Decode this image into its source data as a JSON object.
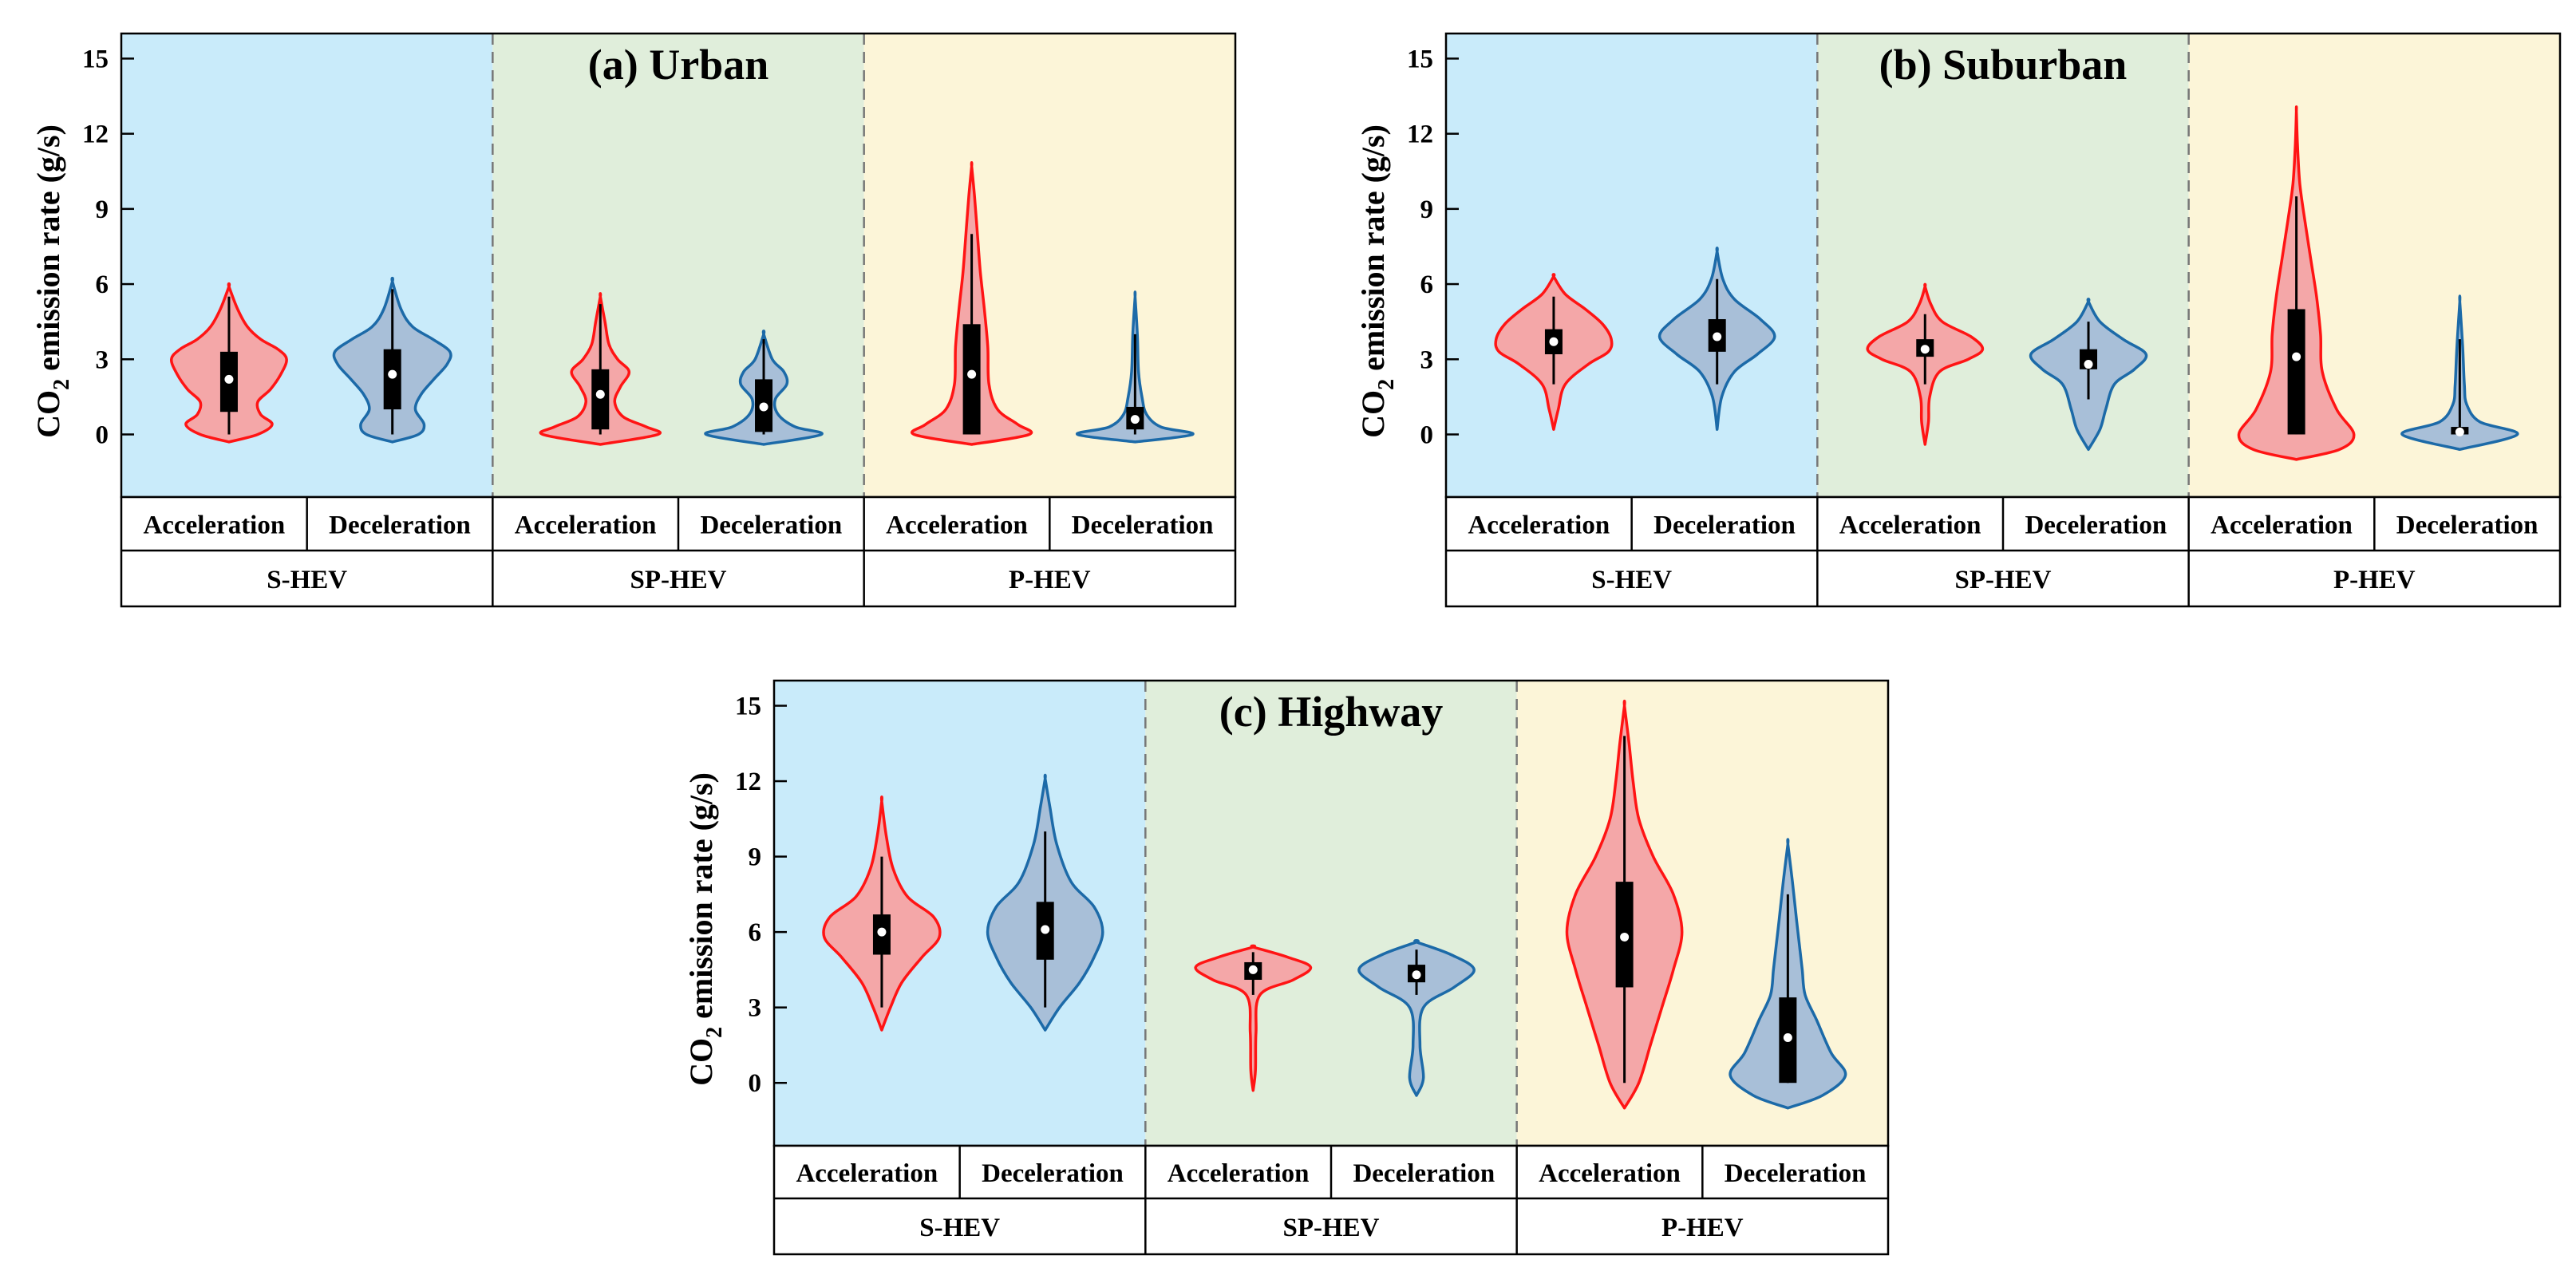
{
  "chart_data": [
    {
      "type": "violin",
      "title": "(a) Urban",
      "ylabel": "CO2 emission rate (g/s)",
      "ylim": [
        -2.5,
        16
      ],
      "yticks": [
        0,
        3,
        6,
        9,
        12,
        15
      ],
      "vehicle_groups": [
        "S-HEV",
        "SP-HEV",
        "P-HEV"
      ],
      "conditions": [
        "Acceleration",
        "Deceleration"
      ],
      "series": [
        {
          "group": "S-HEV",
          "condition": "Acceleration",
          "min": -0.3,
          "max": 5.9,
          "q1": 0.9,
          "median": 2.2,
          "q3": 3.3,
          "whisker_low": 0.0,
          "whisker_high": 5.5,
          "profile": [
            [
              -0.3,
              0.0
            ],
            [
              0.0,
              0.5
            ],
            [
              0.4,
              0.75
            ],
            [
              0.8,
              0.55
            ],
            [
              1.3,
              0.5
            ],
            [
              1.8,
              0.72
            ],
            [
              2.4,
              0.9
            ],
            [
              3.0,
              1.0
            ],
            [
              3.4,
              0.85
            ],
            [
              3.8,
              0.55
            ],
            [
              4.3,
              0.32
            ],
            [
              5.0,
              0.15
            ],
            [
              5.9,
              0.0
            ]
          ]
        },
        {
          "group": "S-HEV",
          "condition": "Deceleration",
          "min": -0.3,
          "max": 6.1,
          "q1": 1.0,
          "median": 2.4,
          "q3": 3.4,
          "whisker_low": 0.0,
          "whisker_high": 5.8,
          "profile": [
            [
              -0.3,
              0.0
            ],
            [
              0.0,
              0.45
            ],
            [
              0.4,
              0.55
            ],
            [
              1.0,
              0.4
            ],
            [
              1.6,
              0.5
            ],
            [
              2.2,
              0.72
            ],
            [
              2.8,
              0.95
            ],
            [
              3.3,
              1.0
            ],
            [
              3.8,
              0.7
            ],
            [
              4.3,
              0.35
            ],
            [
              5.0,
              0.15
            ],
            [
              6.1,
              0.0
            ]
          ]
        }
      ]
    },
    {
      "type": "violin",
      "title": "(a) Urban",
      "group": "SP-HEV",
      "series": [
        {
          "group": "SP-HEV",
          "condition": "Acceleration",
          "min": -0.4,
          "max": 5.5,
          "q1": 0.2,
          "median": 1.6,
          "q3": 2.6,
          "whisker_low": 0.0,
          "whisker_high": 5.2,
          "profile": [
            [
              -0.4,
              0.0
            ],
            [
              0.0,
              1.0
            ],
            [
              0.3,
              0.8
            ],
            [
              0.7,
              0.4
            ],
            [
              1.3,
              0.25
            ],
            [
              1.9,
              0.35
            ],
            [
              2.5,
              0.5
            ],
            [
              3.0,
              0.3
            ],
            [
              3.6,
              0.15
            ],
            [
              4.5,
              0.08
            ],
            [
              5.5,
              0.0
            ]
          ]
        },
        {
          "group": "SP-HEV",
          "condition": "Deceleration",
          "min": -0.4,
          "max": 4.0,
          "q1": 0.1,
          "median": 1.1,
          "q3": 2.2,
          "whisker_low": 0.0,
          "whisker_high": 3.8,
          "profile": [
            [
              -0.4,
              0.0
            ],
            [
              0.0,
              1.0
            ],
            [
              0.3,
              0.55
            ],
            [
              0.8,
              0.25
            ],
            [
              1.4,
              0.2
            ],
            [
              2.0,
              0.4
            ],
            [
              2.5,
              0.35
            ],
            [
              3.0,
              0.15
            ],
            [
              4.0,
              0.0
            ]
          ]
        }
      ]
    },
    {
      "type": "violin",
      "title": "(a) Urban",
      "group": "P-HEV",
      "series": [
        {
          "group": "P-HEV",
          "condition": "Acceleration",
          "min": -0.4,
          "max": 10.7,
          "q1": 0.0,
          "median": 2.4,
          "q3": 4.4,
          "whisker_low": 0.0,
          "whisker_high": 8.0,
          "profile": [
            [
              -0.4,
              0.0
            ],
            [
              0.0,
              1.0
            ],
            [
              0.4,
              0.8
            ],
            [
              1.0,
              0.45
            ],
            [
              2.0,
              0.3
            ],
            [
              3.5,
              0.28
            ],
            [
              5.0,
              0.22
            ],
            [
              6.5,
              0.15
            ],
            [
              8.0,
              0.1
            ],
            [
              9.5,
              0.05
            ],
            [
              10.7,
              0.0
            ]
          ]
        },
        {
          "group": "P-HEV",
          "condition": "Deceleration",
          "min": -0.3,
          "max": 5.5,
          "q1": 0.2,
          "median": 0.6,
          "q3": 1.1,
          "whisker_low": 0.0,
          "whisker_high": 4.0,
          "profile": [
            [
              -0.3,
              0.0
            ],
            [
              0.0,
              1.0
            ],
            [
              0.3,
              0.45
            ],
            [
              0.8,
              0.2
            ],
            [
              1.5,
              0.12
            ],
            [
              2.5,
              0.06
            ],
            [
              4.0,
              0.04
            ],
            [
              5.5,
              0.0
            ]
          ]
        }
      ]
    },
    {
      "type": "violin",
      "title": "(b) Suburban",
      "ylabel": "CO2 emission rate (g/s)",
      "ylim": [
        -2.5,
        16
      ],
      "yticks": [
        0,
        3,
        6,
        9,
        12,
        15
      ],
      "series": [
        {
          "group": "S-HEV",
          "condition": "Acceleration",
          "min": 0.2,
          "max": 6.3,
          "q1": 3.2,
          "median": 3.7,
          "q3": 4.2,
          "whisker_low": 2.0,
          "whisker_high": 5.5,
          "profile": [
            [
              0.2,
              0.0
            ],
            [
              1.0,
              0.08
            ],
            [
              2.0,
              0.2
            ],
            [
              2.8,
              0.6
            ],
            [
              3.3,
              0.95
            ],
            [
              3.8,
              1.0
            ],
            [
              4.4,
              0.85
            ],
            [
              5.0,
              0.55
            ],
            [
              5.6,
              0.2
            ],
            [
              6.3,
              0.0
            ]
          ]
        },
        {
          "group": "S-HEV",
          "condition": "Deceleration",
          "min": 0.2,
          "max": 7.3,
          "q1": 3.3,
          "median": 3.9,
          "q3": 4.6,
          "whisker_low": 2.0,
          "whisker_high": 6.2,
          "profile": [
            [
              0.2,
              0.0
            ],
            [
              1.5,
              0.08
            ],
            [
              2.5,
              0.3
            ],
            [
              3.2,
              0.7
            ],
            [
              3.9,
              1.0
            ],
            [
              4.6,
              0.75
            ],
            [
              5.4,
              0.3
            ],
            [
              6.2,
              0.1
            ],
            [
              7.3,
              0.0
            ]
          ]
        },
        {
          "group": "SP-HEV",
          "condition": "Acceleration",
          "min": -0.4,
          "max": 5.9,
          "q1": 3.1,
          "median": 3.4,
          "q3": 3.8,
          "whisker_low": 2.0,
          "whisker_high": 4.8,
          "profile": [
            [
              -0.4,
              0.0
            ],
            [
              0.5,
              0.06
            ],
            [
              1.5,
              0.08
            ],
            [
              2.5,
              0.25
            ],
            [
              3.0,
              0.75
            ],
            [
              3.4,
              1.0
            ],
            [
              3.9,
              0.8
            ],
            [
              4.5,
              0.3
            ],
            [
              5.2,
              0.1
            ],
            [
              5.9,
              0.0
            ]
          ]
        },
        {
          "group": "SP-HEV",
          "condition": "Deceleration",
          "min": -0.6,
          "max": 5.3,
          "q1": 2.6,
          "median": 2.8,
          "q3": 3.4,
          "whisker_low": 1.4,
          "whisker_high": 4.5,
          "profile": [
            [
              -0.6,
              0.0
            ],
            [
              0.2,
              0.2
            ],
            [
              1.0,
              0.3
            ],
            [
              2.0,
              0.45
            ],
            [
              2.6,
              0.8
            ],
            [
              3.2,
              1.0
            ],
            [
              3.8,
              0.6
            ],
            [
              4.5,
              0.2
            ],
            [
              5.3,
              0.0
            ]
          ]
        },
        {
          "group": "P-HEV",
          "condition": "Acceleration",
          "min": -1.0,
          "max": 12.9,
          "q1": 0.0,
          "median": 3.1,
          "q3": 5.0,
          "whisker_low": 0.0,
          "whisker_high": 9.5,
          "profile": [
            [
              -1.0,
              0.0
            ],
            [
              -0.6,
              0.75
            ],
            [
              0.0,
              1.0
            ],
            [
              1.0,
              0.7
            ],
            [
              2.5,
              0.45
            ],
            [
              4.0,
              0.42
            ],
            [
              5.5,
              0.35
            ],
            [
              7.0,
              0.25
            ],
            [
              8.5,
              0.15
            ],
            [
              10.0,
              0.06
            ],
            [
              11.5,
              0.02
            ],
            [
              12.9,
              0.0
            ]
          ]
        },
        {
          "group": "P-HEV",
          "condition": "Deceleration",
          "min": -0.6,
          "max": 5.3,
          "q1": 0.0,
          "median": 0.1,
          "q3": 0.3,
          "whisker_low": 0.0,
          "whisker_high": 3.8,
          "profile": [
            [
              -0.6,
              0.0
            ],
            [
              0.0,
              1.0
            ],
            [
              0.5,
              0.35
            ],
            [
              1.2,
              0.12
            ],
            [
              2.0,
              0.08
            ],
            [
              3.5,
              0.05
            ],
            [
              5.3,
              0.0
            ]
          ]
        }
      ]
    },
    {
      "type": "violin",
      "title": "(c) Highway",
      "ylabel": "CO2 emission rate (g/s)",
      "ylim": [
        -2.5,
        16
      ],
      "yticks": [
        0,
        3,
        6,
        9,
        12,
        15
      ],
      "series": [
        {
          "group": "S-HEV",
          "condition": "Acceleration",
          "min": 2.1,
          "max": 11.2,
          "q1": 5.1,
          "median": 6.0,
          "q3": 6.7,
          "whisker_low": 3.0,
          "whisker_high": 9.0,
          "profile": [
            [
              2.1,
              0.0
            ],
            [
              3.0,
              0.15
            ],
            [
              4.0,
              0.35
            ],
            [
              5.0,
              0.7
            ],
            [
              5.8,
              1.0
            ],
            [
              6.6,
              0.9
            ],
            [
              7.4,
              0.45
            ],
            [
              8.5,
              0.2
            ],
            [
              9.8,
              0.08
            ],
            [
              11.2,
              0.0
            ]
          ]
        },
        {
          "group": "S-HEV",
          "condition": "Deceleration",
          "min": 2.1,
          "max": 12.1,
          "q1": 4.9,
          "median": 6.1,
          "q3": 7.2,
          "whisker_low": 3.0,
          "whisker_high": 10.0,
          "profile": [
            [
              2.1,
              0.0
            ],
            [
              3.0,
              0.25
            ],
            [
              4.0,
              0.6
            ],
            [
              5.0,
              0.85
            ],
            [
              6.0,
              1.0
            ],
            [
              7.0,
              0.85
            ],
            [
              8.0,
              0.45
            ],
            [
              9.5,
              0.2
            ],
            [
              11.0,
              0.08
            ],
            [
              12.1,
              0.0
            ]
          ]
        },
        {
          "group": "SP-HEV",
          "condition": "Acceleration",
          "min": -0.3,
          "max": 5.4,
          "q1": 4.1,
          "median": 4.5,
          "q3": 4.8,
          "whisker_low": 3.5,
          "whisker_high": 5.2,
          "profile": [
            [
              -0.3,
              0.0
            ],
            [
              0.5,
              0.04
            ],
            [
              2.0,
              0.05
            ],
            [
              3.5,
              0.12
            ],
            [
              4.1,
              0.7
            ],
            [
              4.6,
              1.0
            ],
            [
              5.0,
              0.6
            ],
            [
              5.4,
              0.0
            ]
          ]
        },
        {
          "group": "SP-HEV",
          "condition": "Deceleration",
          "min": -0.5,
          "max": 5.6,
          "q1": 4.0,
          "median": 4.3,
          "q3": 4.7,
          "whisker_low": 3.5,
          "whisker_high": 5.3,
          "profile": [
            [
              -0.5,
              0.0
            ],
            [
              0.2,
              0.12
            ],
            [
              1.5,
              0.06
            ],
            [
              3.0,
              0.12
            ],
            [
              3.8,
              0.65
            ],
            [
              4.5,
              1.0
            ],
            [
              5.1,
              0.6
            ],
            [
              5.6,
              0.0
            ]
          ]
        },
        {
          "group": "P-HEV",
          "condition": "Acceleration",
          "min": -1.0,
          "max": 15.0,
          "q1": 3.8,
          "median": 5.8,
          "q3": 8.0,
          "whisker_low": 0.0,
          "whisker_high": 13.8,
          "profile": [
            [
              -1.0,
              0.0
            ],
            [
              0.0,
              0.25
            ],
            [
              1.5,
              0.45
            ],
            [
              3.0,
              0.65
            ],
            [
              4.5,
              0.85
            ],
            [
              6.0,
              1.0
            ],
            [
              7.5,
              0.85
            ],
            [
              9.0,
              0.5
            ],
            [
              10.5,
              0.25
            ],
            [
              12.0,
              0.15
            ],
            [
              13.5,
              0.08
            ],
            [
              15.0,
              0.0
            ]
          ]
        },
        {
          "group": "P-HEV",
          "condition": "Deceleration",
          "min": -1.0,
          "max": 9.5,
          "q1": 0.0,
          "median": 1.8,
          "q3": 3.4,
          "whisker_low": 0.0,
          "whisker_high": 7.5,
          "profile": [
            [
              -1.0,
              0.0
            ],
            [
              -0.5,
              0.6
            ],
            [
              0.3,
              1.0
            ],
            [
              1.2,
              0.75
            ],
            [
              2.5,
              0.5
            ],
            [
              3.5,
              0.3
            ],
            [
              4.5,
              0.25
            ],
            [
              5.5,
              0.2
            ],
            [
              6.5,
              0.15
            ],
            [
              8.0,
              0.08
            ],
            [
              9.5,
              0.0
            ]
          ]
        }
      ]
    }
  ],
  "panels": [
    {
      "id": "urban",
      "title": "(a) Urban"
    },
    {
      "id": "suburban",
      "title": "(b) Suburban"
    },
    {
      "id": "highway",
      "title": "(c) Highway"
    }
  ],
  "ylabel_main": "CO",
  "ylabel_sub": "2",
  "ylabel_rest": " emission rate (g/s)",
  "ytick_labels": [
    "0",
    "3",
    "6",
    "9",
    "12",
    "15"
  ],
  "vehicle_groups": [
    "S-HEV",
    "SP-HEV",
    "P-HEV"
  ],
  "conditions": [
    "Acceleration",
    "Deceleration"
  ],
  "colors": {
    "bg_shev": "#c9ebfa",
    "bg_sphev": "#e0eedb",
    "bg_phev": "#fcf5d8",
    "accel_fill": "#f4a7a8",
    "accel_line": "#ff1414",
    "decel_fill": "#a8bfd8",
    "decel_line": "#1c6aa8",
    "box": "#000000",
    "median_dot": "#ffffff"
  }
}
